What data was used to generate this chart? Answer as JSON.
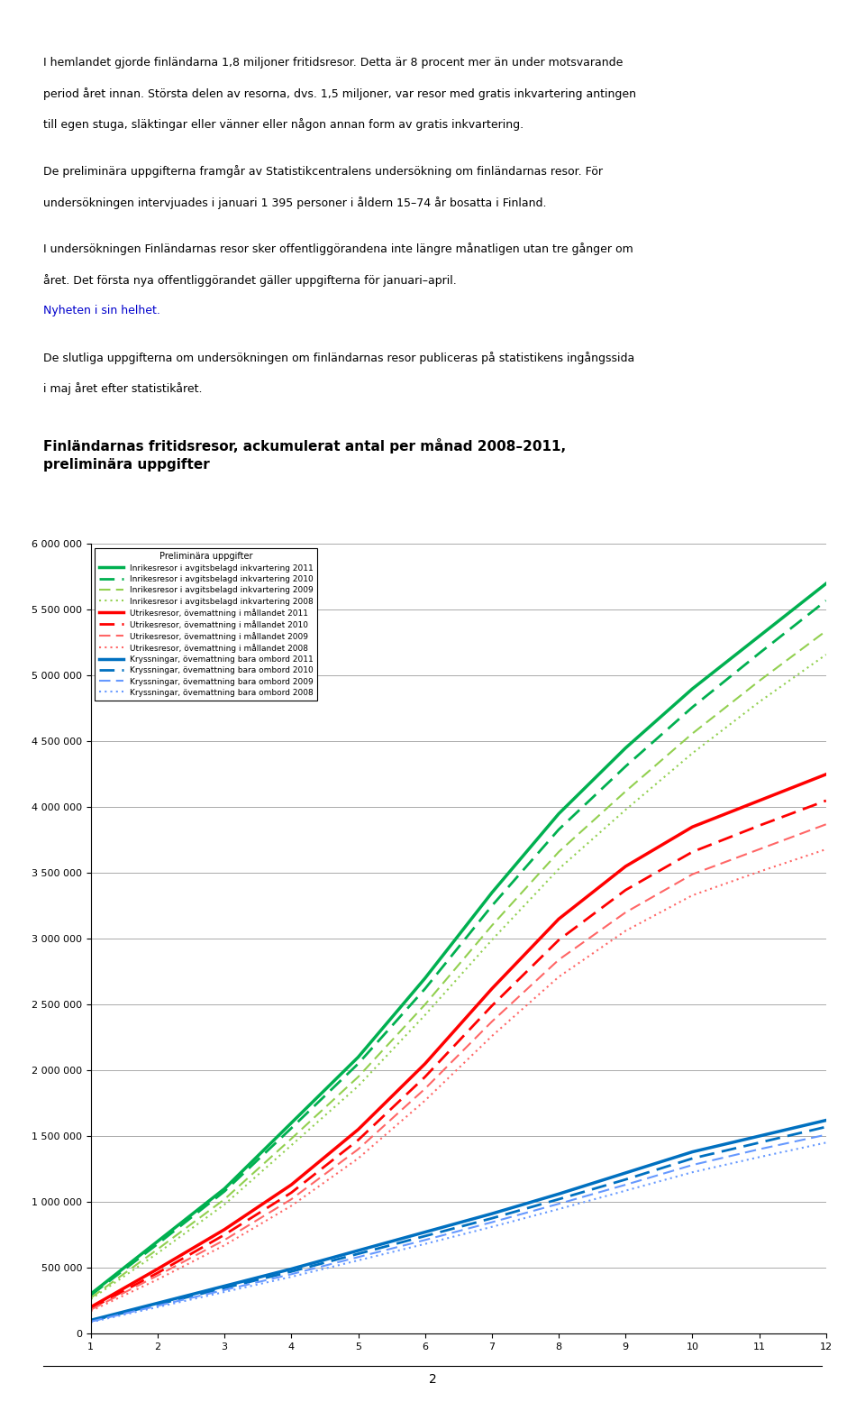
{
  "title_line1": "Finländarnas fritidsresor, ackumulerat antal per månad 2008–2011,",
  "title_line2": "preliminära uppgifter",
  "subtitle": "Preliminära uppgifter",
  "xlim": [
    1,
    12
  ],
  "ylim": [
    0,
    6000000
  ],
  "yticks": [
    0,
    500000,
    1000000,
    1500000,
    2000000,
    2500000,
    3000000,
    3500000,
    4000000,
    4500000,
    5000000,
    5500000,
    6000000
  ],
  "xticks": [
    1,
    2,
    3,
    4,
    5,
    6,
    7,
    8,
    9,
    10,
    11,
    12
  ],
  "background_color": "#ffffff",
  "series": [
    {
      "label": "Inrikesresor i avgitsbelagd inkvartering 2011",
      "color": "#00b050",
      "linestyle": "solid",
      "linewidth": 2.5,
      "data": [
        300000,
        700000,
        1100000,
        1600000,
        2100000,
        2700000,
        3350000,
        3950000,
        4450000,
        4900000,
        5300000,
        5700000
      ]
    },
    {
      "label": "Inrikesresor i avgitsbelagd inkvartering 2010",
      "color": "#00b050",
      "linestyle": "dashed",
      "linewidth": 2.0,
      "data": [
        290000,
        680000,
        1080000,
        1560000,
        2050000,
        2620000,
        3250000,
        3830000,
        4310000,
        4760000,
        5170000,
        5570000
      ]
    },
    {
      "label": "Inrikesresor i avgitsbelagd inkvartering 2009",
      "color": "#92d050",
      "linestyle": "dashed",
      "linewidth": 1.5,
      "data": [
        270000,
        640000,
        1020000,
        1480000,
        1950000,
        2500000,
        3100000,
        3660000,
        4120000,
        4560000,
        4960000,
        5340000
      ]
    },
    {
      "label": "Inrikesresor i avgitsbelagd inkvartering 2008",
      "color": "#92d050",
      "linestyle": "dotted",
      "linewidth": 1.5,
      "data": [
        260000,
        610000,
        980000,
        1430000,
        1880000,
        2420000,
        2990000,
        3530000,
        3980000,
        4410000,
        4800000,
        5160000
      ]
    },
    {
      "label": "Utrikesresor, övemattning i mållandet 2011",
      "color": "#ff0000",
      "linestyle": "solid",
      "linewidth": 2.5,
      "data": [
        200000,
        490000,
        790000,
        1130000,
        1550000,
        2050000,
        2620000,
        3150000,
        3550000,
        3850000,
        4050000,
        4250000
      ]
    },
    {
      "label": "Utrikesresor, övemattning i mållandet 2010",
      "color": "#ff0000",
      "linestyle": "dashed",
      "linewidth": 2.0,
      "data": [
        190000,
        460000,
        750000,
        1070000,
        1470000,
        1950000,
        2490000,
        2990000,
        3370000,
        3660000,
        3860000,
        4050000
      ]
    },
    {
      "label": "Utrikesresor, övemattning i mållandet 2009",
      "color": "#ff6666",
      "linestyle": "dashed",
      "linewidth": 1.5,
      "data": [
        180000,
        440000,
        710000,
        1020000,
        1400000,
        1860000,
        2370000,
        2840000,
        3200000,
        3490000,
        3680000,
        3870000
      ]
    },
    {
      "label": "Utrikesresor, övemattning i mållandet 2008",
      "color": "#ff6666",
      "linestyle": "dotted",
      "linewidth": 1.5,
      "data": [
        170000,
        410000,
        670000,
        970000,
        1330000,
        1770000,
        2260000,
        2710000,
        3060000,
        3330000,
        3510000,
        3680000
      ]
    },
    {
      "label": "Kryssningar, övemattning bara ombord 2011",
      "color": "#0070c0",
      "linestyle": "solid",
      "linewidth": 2.5,
      "data": [
        100000,
        230000,
        360000,
        490000,
        630000,
        770000,
        910000,
        1060000,
        1220000,
        1380000,
        1500000,
        1620000
      ]
    },
    {
      "label": "Kryssningar, övemattning bara ombord 2010",
      "color": "#0070c0",
      "linestyle": "dashed",
      "linewidth": 2.0,
      "data": [
        95000,
        220000,
        345000,
        470000,
        605000,
        740000,
        875000,
        1020000,
        1170000,
        1330000,
        1450000,
        1570000
      ]
    },
    {
      "label": "Kryssningar, övemattning bara ombord 2009",
      "color": "#6699ff",
      "linestyle": "dashed",
      "linewidth": 1.5,
      "data": [
        90000,
        210000,
        330000,
        450000,
        580000,
        710000,
        845000,
        985000,
        1130000,
        1280000,
        1400000,
        1510000
      ]
    },
    {
      "label": "Kryssningar, övemattning bara ombord 2008",
      "color": "#6699ff",
      "linestyle": "dotted",
      "linewidth": 1.5,
      "data": [
        85000,
        200000,
        315000,
        430000,
        555000,
        680000,
        810000,
        945000,
        1085000,
        1225000,
        1340000,
        1450000
      ]
    }
  ],
  "para1": [
    "I hemlandet gjorde finländarna 1,8 miljoner fritidsresor. Detta är 8 procent mer än under motsvarande",
    "period året innan. Största delen av resorna, dvs. 1,5 miljoner, var resor med gratis inkvartering antingen",
    "till egen stuga, släktingar eller vänner eller någon annan form av gratis inkvartering."
  ],
  "para2": [
    "De preliminära uppgifterna framgår av Statistikcentralens undersökning om finländarnas resor. För",
    "undersökningen intervjuades i januari 1 395 personer i åldern 15–74 år bosatta i Finland."
  ],
  "para3": [
    "I undersökningen Finländarnas resor sker offentliggörandena inte längre månatligen utan tre gånger om",
    "året. Det första nya offentliggörandet gäller uppgifterna för januari–april."
  ],
  "link_text": "Nyheten i sin helhet.",
  "para4": [
    "De slutliga uppgifterna om undersökningen om finländarnas resor publiceras på statistikens ingångssida",
    "i maj året efter statistikåret."
  ],
  "chart_title": "Finländarnas fritidsresor, ackumulerat antal per månad 2008–2011,\npreliminära uppgifter",
  "legend_title": "Preliminära uppgifter",
  "footer_text": "2"
}
